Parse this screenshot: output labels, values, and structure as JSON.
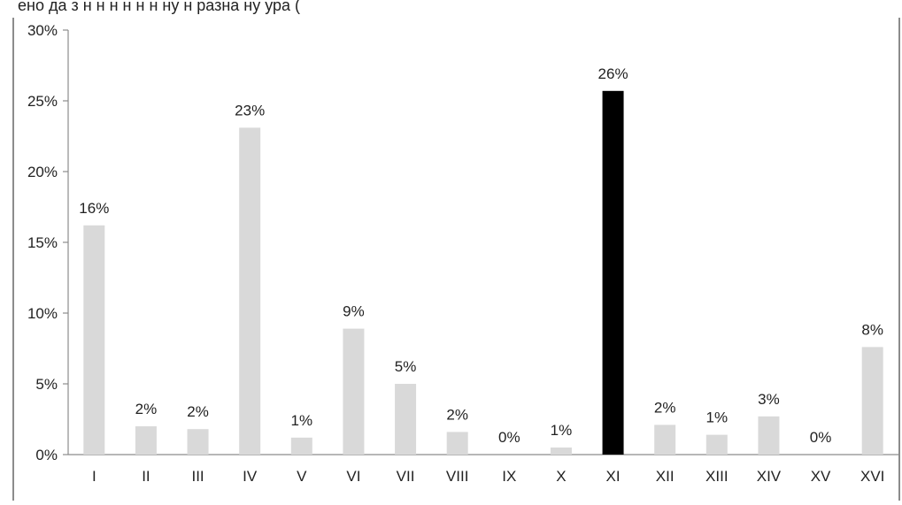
{
  "chart_data": {
    "type": "bar",
    "caption_fragment": "ено   да  з    н    н  н     н      н  н      ну   н      разна    ну  ура  (",
    "categories": [
      "I",
      "II",
      "III",
      "IV",
      "V",
      "VI",
      "VII",
      "VIII",
      "IX",
      "X",
      "XI",
      "XII",
      "XIII",
      "XIV",
      "XV",
      "XVI"
    ],
    "values": [
      16.2,
      2.0,
      1.8,
      23.1,
      1.2,
      8.9,
      5.0,
      1.6,
      0.0,
      0.5,
      25.7,
      2.1,
      1.4,
      2.7,
      0.0,
      7.6
    ],
    "data_labels": [
      "16%",
      "2%",
      "2%",
      "23%",
      "1%",
      "9%",
      "5%",
      "2%",
      "0%",
      "1%",
      "26%",
      "2%",
      "1%",
      "3%",
      "0%",
      "8%"
    ],
    "highlight_index": 10,
    "ylim": [
      0,
      30
    ],
    "y_ticks": [
      0,
      5,
      10,
      15,
      20,
      25,
      30
    ],
    "y_tick_labels": [
      "0%",
      "5%",
      "10%",
      "15%",
      "20%",
      "25%",
      "30%"
    ],
    "title": "",
    "xlabel": "",
    "ylabel": "",
    "grid": false,
    "legend": "none",
    "colors": {
      "bar": "#d9d9d9",
      "highlight": "#000000",
      "axis": "#8c8c8c",
      "frame": "#666666",
      "text": "#222222"
    }
  }
}
